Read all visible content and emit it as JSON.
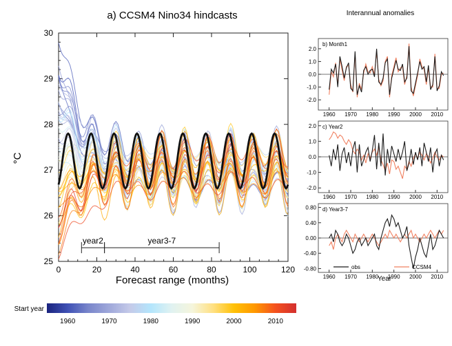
{
  "chart_data": [
    {
      "id": "a",
      "type": "line",
      "title": "a) CCSM4 Nino34 hindcasts",
      "xlabel": "Forecast range (months)",
      "ylabel": "°C",
      "xlim": [
        0,
        120
      ],
      "ylim": [
        25,
        30
      ],
      "x_ticks": [
        0,
        20,
        40,
        60,
        80,
        100,
        120
      ],
      "y_ticks": [
        25,
        26,
        27,
        28,
        29,
        30
      ],
      "annotations": [
        {
          "label": "year2",
          "x_start": 12,
          "x_end": 24
        },
        {
          "label": "year3-7",
          "x_start": 24,
          "x_end": 84
        }
      ],
      "observed_climatology": {
        "color": "#111111",
        "period_months": 12,
        "peak_month": 5,
        "min": 26.6,
        "max": 27.8
      },
      "ensemble": {
        "start_year_min": 1960,
        "start_year_max": 2013,
        "member_count": 54,
        "description_values": {
          "early_start_peak": 29.3,
          "late_start_min": 25.4,
          "converged_mean": 27.0
        }
      },
      "colorbar": {
        "label": "Start year",
        "ticks": [
          1960,
          1970,
          1980,
          1990,
          2000,
          2010
        ],
        "range": [
          1955,
          2015
        ],
        "colors": [
          "#1a237e",
          "#3f51b5",
          "#7986cb",
          "#9fa8da",
          "#c5cae9",
          "#b3e5fc",
          "#e0f2f1",
          "#f5f5dc",
          "#ffe082",
          "#ffc107",
          "#ff9800",
          "#f4511e",
          "#d32f2f"
        ]
      }
    },
    {
      "id": "b",
      "type": "line",
      "title": "b) Month1",
      "xlim": [
        1955,
        2015
      ],
      "ylim": [
        -2.8,
        2.8
      ],
      "y_ticks": [
        2.0,
        1.0,
        0.0,
        -1.0,
        -2.0
      ],
      "y_tick_labels": [
        "2.0",
        "1.0",
        "0.0",
        "-1.0",
        "-2.0"
      ],
      "x_ticks": [
        1960,
        1970,
        1980,
        1990,
        2000,
        2010
      ],
      "series": [
        {
          "color": "#1a1a1a",
          "x_start": 1960,
          "values": [
            -1.2,
            0.4,
            0.1,
            0.8,
            -1.0,
            1.4,
            0.6,
            -0.3,
            0.5,
            0.9,
            -1.1,
            -1.3,
            1.8,
            -1.6,
            -0.9,
            -1.4,
            0.3,
            0.6,
            0.0,
            0.3,
            0.4,
            -0.2,
            2.0,
            -0.6,
            -0.8,
            -0.3,
            0.9,
            1.2,
            -1.6,
            -0.3,
            0.4,
            1.1,
            0.4,
            0.3,
            0.8,
            -0.6,
            -0.3,
            2.2,
            -1.3,
            -1.5,
            -0.7,
            0.1,
            1.0,
            0.4,
            0.6,
            -0.6,
            0.7,
            -1.2,
            -0.8,
            1.4,
            -1.3,
            -0.9,
            0.2,
            -0.1
          ]
        },
        {
          "color": "#f08060",
          "x_start": 1960,
          "values": [
            -1.6,
            0.2,
            -0.2,
            0.9,
            -0.8,
            1.2,
            0.3,
            -0.5,
            0.6,
            0.7,
            -0.8,
            -1.4,
            1.6,
            -1.8,
            -0.7,
            -1.2,
            0.1,
            0.8,
            0.2,
            0.1,
            0.6,
            0.0,
            1.8,
            -0.4,
            -0.9,
            -0.5,
            1.0,
            1.4,
            -1.8,
            -0.1,
            0.6,
            1.3,
            0.2,
            0.5,
            0.6,
            -0.8,
            -0.1,
            2.4,
            -1.0,
            -1.7,
            -0.9,
            -0.1,
            1.2,
            0.6,
            0.4,
            -0.8,
            0.5,
            -1.0,
            -1.0,
            1.6,
            -1.1,
            -1.1,
            0.0,
            0.1
          ]
        }
      ]
    },
    {
      "id": "c",
      "type": "line",
      "title": "c) Year2",
      "xlim": [
        1955,
        2015
      ],
      "ylim": [
        -2.3,
        2.3
      ],
      "y_ticks": [
        2.0,
        1.0,
        0.0,
        -1.0,
        -2.0
      ],
      "y_tick_labels": [
        "2.0",
        "1.0",
        "0.0",
        "-1.0",
        "-2.0"
      ],
      "x_ticks": [
        1960,
        1970,
        1980,
        1990,
        2000,
        2010
      ],
      "series": [
        {
          "color": "#1a1a1a",
          "x_start": 1960,
          "values": [
            0.1,
            -0.6,
            0.5,
            -0.2,
            0.8,
            -0.9,
            0.2,
            0.6,
            -0.4,
            0.3,
            -0.6,
            0.5,
            1.0,
            -1.0,
            0.8,
            -0.6,
            -0.2,
            0.3,
            0.6,
            -0.3,
            0.4,
            1.4,
            -0.8,
            0.9,
            -0.6,
            1.5,
            -1.2,
            0.5,
            -0.4,
            0.7,
            0.2,
            -0.3,
            0.5,
            -0.2,
            0.3,
            1.0,
            -0.9,
            -0.4,
            0.5,
            -0.5,
            0.3,
            -0.2,
            0.6,
            -0.6,
            0.9,
            0.3,
            -0.3,
            0.6,
            -1.0,
            0.2,
            0.5,
            -0.6,
            0.1,
            -0.2
          ]
        },
        {
          "color": "#f08060",
          "x_start": 1960,
          "values": [
            1.1,
            1.3,
            1.6,
            1.5,
            1.2,
            1.4,
            1.3,
            1.0,
            0.8,
            1.1,
            0.9,
            0.4,
            0.2,
            0.5,
            0.3,
            -0.2,
            0.1,
            -0.4,
            0.2,
            -0.1,
            0.3,
            0.5,
            0.1,
            0.6,
            -0.2,
            -0.5,
            -0.9,
            -0.4,
            -1.1,
            -0.2,
            -0.3,
            -0.8,
            -0.6,
            -1.0,
            -1.4,
            -0.6,
            -0.8,
            -0.3,
            -0.6,
            -0.1,
            0.2,
            -0.1,
            0.3,
            0.1,
            -0.2,
            0.2,
            0.0,
            -0.4,
            -0.1,
            0.3,
            0.0,
            -0.2,
            0.1,
            0.0
          ]
        }
      ]
    },
    {
      "id": "d",
      "type": "line",
      "title": "d) Year3-7",
      "xlim": [
        1955,
        2015
      ],
      "ylim": [
        -0.9,
        0.9
      ],
      "y_ticks": [
        0.8,
        0.4,
        0.0,
        -0.4,
        -0.8
      ],
      "y_tick_labels": [
        "0.80",
        "0.40",
        "0.00",
        "-0.40",
        "-0.80"
      ],
      "x_ticks": [
        1960,
        1970,
        1980,
        1990,
        2000,
        2010
      ],
      "legend": [
        {
          "label": "obs",
          "color": "#1a1a1a"
        },
        {
          "label": "CCSM4",
          "color": "#f08060"
        }
      ],
      "series": [
        {
          "color": "#1a1a1a",
          "x_start": 1960,
          "values": [
            0.0,
            0.1,
            -0.1,
            0.2,
            0.1,
            -0.1,
            -0.2,
            -0.1,
            0.1,
            0.0,
            -0.2,
            -0.4,
            -0.3,
            -0.1,
            0.0,
            -0.2,
            -0.1,
            0.0,
            -0.2,
            -0.1,
            0.0,
            0.1,
            -0.2,
            -0.3,
            0.0,
            0.2,
            0.4,
            0.5,
            0.3,
            0.6,
            0.5,
            0.3,
            0.4,
            0.2,
            0.0,
            0.1,
            0.3,
            -0.2,
            -0.5,
            -0.8,
            -0.5,
            -0.3,
            0.0,
            -0.2,
            -0.4,
            -0.5,
            -0.2,
            0.1,
            -0.3,
            -0.2,
            0.0,
            0.2,
            0.1,
            0.0
          ]
        },
        {
          "color": "#f08060",
          "x_start": 1960,
          "values": [
            -0.2,
            -0.1,
            -0.3,
            0.0,
            0.1,
            0.0,
            -0.1,
            0.1,
            0.2,
            0.1,
            0.0,
            -0.1,
            0.1,
            0.0,
            -0.1,
            0.0,
            0.1,
            0.0,
            -0.1,
            0.0,
            0.1,
            0.0,
            -0.1,
            -0.2,
            -0.1,
            0.0,
            0.1,
            0.0,
            0.2,
            0.1,
            0.0,
            0.1,
            0.0,
            -0.1,
            0.0,
            0.1,
            0.0,
            0.1,
            0.2,
            0.0,
            0.1,
            0.0,
            -0.1,
            0.0,
            0.1,
            0.0,
            0.1,
            0.2,
            0.1,
            0.0,
            0.1,
            0.2,
            0.1,
            0.2
          ]
        }
      ]
    }
  ],
  "right_column_title": "Interannual anomalies",
  "right_xlabel": "Year",
  "right_x_tick_labels": [
    "1960",
    "1970",
    "1980",
    "1990",
    "2000",
    "2010"
  ]
}
